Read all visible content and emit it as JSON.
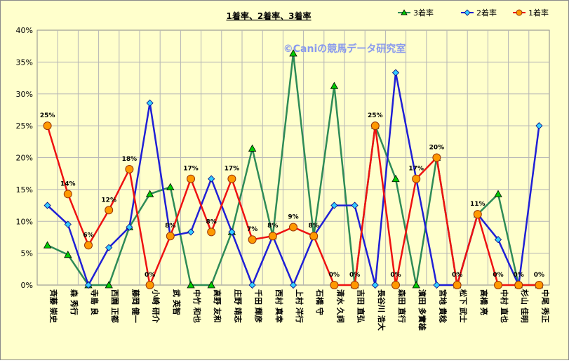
{
  "chart_data": {
    "type": "line",
    "title": "1着率、2着率、3着率",
    "watermark": "©Caniの競馬データ研究室",
    "background_color": "#ffffcc",
    "plot_background_color": "#ffffcc",
    "grid": true,
    "legend_position": "top-right",
    "ylim": [
      0,
      40
    ],
    "y_ticks": [
      "0%",
      "5%",
      "10%",
      "15%",
      "20%",
      "25%",
      "30%",
      "35%",
      "40%"
    ],
    "categories": [
      "斉藤 崇史",
      "森 秀行",
      "寺島 良",
      "西園 正都",
      "藤岡 健一",
      "小崎 研介",
      "武 英智",
      "中竹 和也",
      "高野 友和",
      "庄野 靖志",
      "千田 輝彦",
      "西村 真幸",
      "上村 洋行",
      "石橋 守",
      "清水 久詞",
      "吉田 直弘",
      "長谷川 浩大",
      "森田 直行",
      "濱田 多實雄",
      "宮地 貴稔",
      "松下 武士",
      "高橋 亮",
      "中村 直也",
      "杉山 佳明",
      "中尾 秀正"
    ],
    "series": [
      {
        "name": "3着率",
        "color": "#2e8b57",
        "marker": "triangle",
        "marker_color": "#00cc00",
        "values": [
          6.25,
          4.76,
          0,
          0,
          9.09,
          14.29,
          15.38,
          0,
          0,
          8.33,
          21.43,
          7.69,
          36.36,
          7.69,
          31.25,
          0,
          25,
          16.67,
          0,
          20,
          0,
          11.11,
          14.29,
          0,
          0
        ]
      },
      {
        "name": "2着率",
        "color": "#1f1fd6",
        "marker": "diamond",
        "marker_color": "#33ccff",
        "values": [
          12.5,
          9.52,
          0,
          5.88,
          9.09,
          28.57,
          7.69,
          8.33,
          16.67,
          8.33,
          0,
          7.69,
          0,
          7.69,
          12.5,
          12.5,
          0,
          33.33,
          16.67,
          0,
          0,
          11.11,
          7.14,
          0,
          25
        ]
      },
      {
        "name": "1着率",
        "color": "#ee1111",
        "marker": "circle",
        "marker_color": "#ff9900",
        "values": [
          25,
          14.29,
          6.25,
          11.76,
          18.18,
          0,
          7.69,
          16.67,
          8.33,
          16.67,
          7.14,
          7.69,
          9.09,
          7.69,
          0,
          0,
          25,
          0,
          16.67,
          20,
          0,
          11.11,
          0,
          0,
          0
        ],
        "data_labels": [
          "25%",
          "14%",
          "6%",
          "12%",
          "18%",
          "0%",
          "8%",
          "17%",
          "8%",
          "17%",
          "7%",
          "8%",
          "9%",
          "8%",
          "0%",
          "0%",
          "25%",
          "0%",
          "17%",
          "20%",
          "0%",
          "11%",
          "0%",
          "0%",
          "0%"
        ]
      }
    ]
  }
}
